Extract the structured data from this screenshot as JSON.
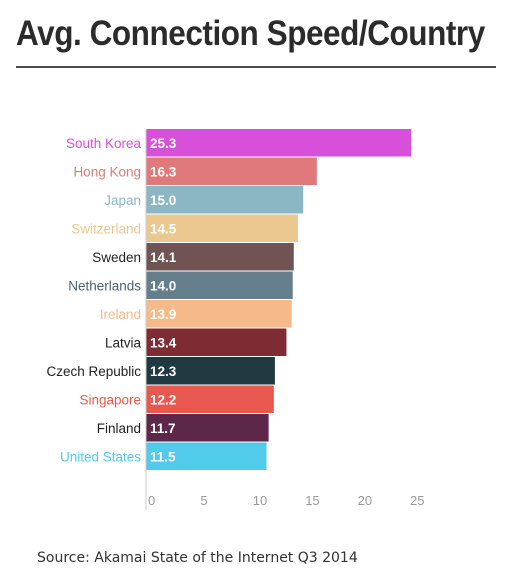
{
  "title": "Avg. Connection Speed/Country",
  "source": "Source: Akamai State of the Internet Q3 2014",
  "chart_data": {
    "type": "bar",
    "orientation": "horizontal",
    "categories": [
      "South Korea",
      "Hong Kong",
      "Japan",
      "Switzerland",
      "Sweden",
      "Netherlands",
      "Ireland",
      "Latvia",
      "Czech Republic",
      "Singapore",
      "Finland",
      "United States"
    ],
    "values": [
      25.3,
      16.3,
      15.0,
      14.5,
      14.1,
      14.0,
      13.9,
      13.4,
      12.3,
      12.2,
      11.7,
      11.5
    ],
    "value_labels": [
      "25.3",
      "16.3",
      "15.0",
      "14.5",
      "14.1",
      "14.0",
      "13.9",
      "13.4",
      "12.3",
      "12.2",
      "11.7",
      "11.5"
    ],
    "bar_colors": [
      "#d84fd9",
      "#e07a7a",
      "#8bb6c4",
      "#ebc88f",
      "#705353",
      "#647f8b",
      "#f6b989",
      "#7e2b33",
      "#203840",
      "#e9584f",
      "#5d2749",
      "#51cbea"
    ],
    "label_colors": [
      "#d84fd9",
      "#e07a7a",
      "#8bb6c4",
      "#ebc88f",
      "#222222",
      "#4a6370",
      "#f6b989",
      "#222222",
      "#222222",
      "#e9584f",
      "#222222",
      "#51cbea"
    ],
    "xticks": [
      "0",
      "5",
      "10",
      "15",
      "20",
      "25"
    ],
    "xlim": [
      0,
      25
    ],
    "grid": false
  }
}
